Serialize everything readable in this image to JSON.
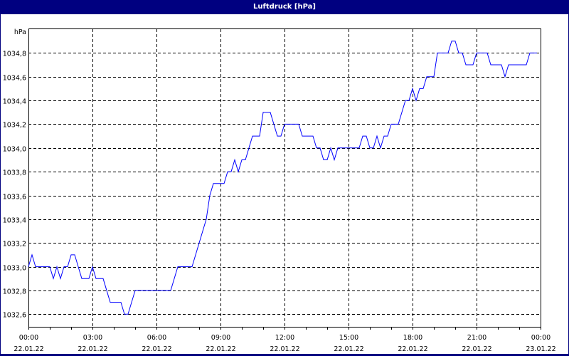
{
  "window": {
    "title": "Luftdruck [hPa]"
  },
  "chart_data": {
    "type": "line",
    "title": "Luftdruck [hPa]",
    "ylabel": "hPa",
    "xlabel": "",
    "ylim": [
      1032.5,
      1035.0
    ],
    "xlim": [
      "22.01.22 00:00",
      "23.01.22 00:00"
    ],
    "grid": true,
    "line_color": "#0000ff",
    "y_ticks": [
      "1032,6",
      "1032,8",
      "1033,0",
      "1033,2",
      "1033,4",
      "1033,6",
      "1033,8",
      "1034,0",
      "1034,2",
      "1034,4",
      "1034,6",
      "1034,8"
    ],
    "x_ticks": [
      {
        "time": "00:00",
        "date": "22.01.22"
      },
      {
        "time": "03:00",
        "date": "22.01.22"
      },
      {
        "time": "06:00",
        "date": "22.01.22"
      },
      {
        "time": "09:00",
        "date": "22.01.22"
      },
      {
        "time": "12:00",
        "date": "22.01.22"
      },
      {
        "time": "15:00",
        "date": "22.01.22"
      },
      {
        "time": "18:00",
        "date": "22.01.22"
      },
      {
        "time": "21:00",
        "date": "22.01.22"
      },
      {
        "time": "00:00",
        "date": "23.01.22"
      }
    ],
    "series": [
      {
        "x": [
          "00:00",
          "00:10",
          "00:20",
          "01:00",
          "01:10",
          "01:20",
          "01:30",
          "01:40",
          "01:50",
          "02:00",
          "02:10",
          "02:30",
          "02:50",
          "03:00",
          "03:10",
          "03:30",
          "03:50",
          "04:20",
          "04:30",
          "04:40",
          "05:00",
          "06:40",
          "07:00",
          "07:40",
          "08:20",
          "08:30",
          "08:40",
          "09:10",
          "09:20",
          "09:30",
          "09:40",
          "09:50",
          "10:00",
          "10:10",
          "10:20",
          "10:30",
          "10:50",
          "11:00",
          "11:20",
          "11:40",
          "11:50",
          "12:00",
          "12:40",
          "12:50",
          "13:20",
          "13:30",
          "13:40",
          "13:50",
          "14:00",
          "14:10",
          "14:20",
          "14:30",
          "15:30",
          "15:40",
          "15:50",
          "16:00",
          "16:10",
          "16:20",
          "16:30",
          "16:40",
          "16:50",
          "17:00",
          "17:20",
          "17:40",
          "17:50",
          "18:00",
          "18:10",
          "18:20",
          "18:30",
          "18:40",
          "19:00",
          "19:10",
          "19:40",
          "19:50",
          "20:00",
          "20:10",
          "20:20",
          "20:30",
          "20:50",
          "21:00",
          "21:30",
          "21:40",
          "22:10",
          "22:20",
          "22:30",
          "23:20",
          "23:30",
          "23:50"
        ],
        "y": [
          1033.0,
          1033.1,
          1033.0,
          1033.0,
          1032.9,
          1033.0,
          1032.9,
          1033.0,
          1033.0,
          1033.1,
          1033.1,
          1032.9,
          1032.9,
          1033.0,
          1032.9,
          1032.9,
          1032.7,
          1032.7,
          1032.6,
          1032.6,
          1032.8,
          1032.8,
          1033.0,
          1033.0,
          1033.4,
          1033.6,
          1033.7,
          1033.7,
          1033.8,
          1033.8,
          1033.9,
          1033.8,
          1033.9,
          1033.9,
          1034.0,
          1034.1,
          1034.1,
          1034.3,
          1034.3,
          1034.1,
          1034.1,
          1034.2,
          1034.2,
          1034.1,
          1034.1,
          1034.0,
          1034.0,
          1033.9,
          1033.9,
          1034.0,
          1033.9,
          1034.0,
          1034.0,
          1034.1,
          1034.1,
          1034.0,
          1034.0,
          1034.1,
          1034.0,
          1034.1,
          1034.1,
          1034.2,
          1034.2,
          1034.4,
          1034.4,
          1034.5,
          1034.4,
          1034.5,
          1034.5,
          1034.6,
          1034.6,
          1034.8,
          1034.8,
          1034.9,
          1034.9,
          1034.8,
          1034.8,
          1034.7,
          1034.7,
          1034.8,
          1034.8,
          1034.7,
          1034.7,
          1034.6,
          1034.7,
          1034.7,
          1034.8,
          1034.8
        ]
      }
    ]
  }
}
